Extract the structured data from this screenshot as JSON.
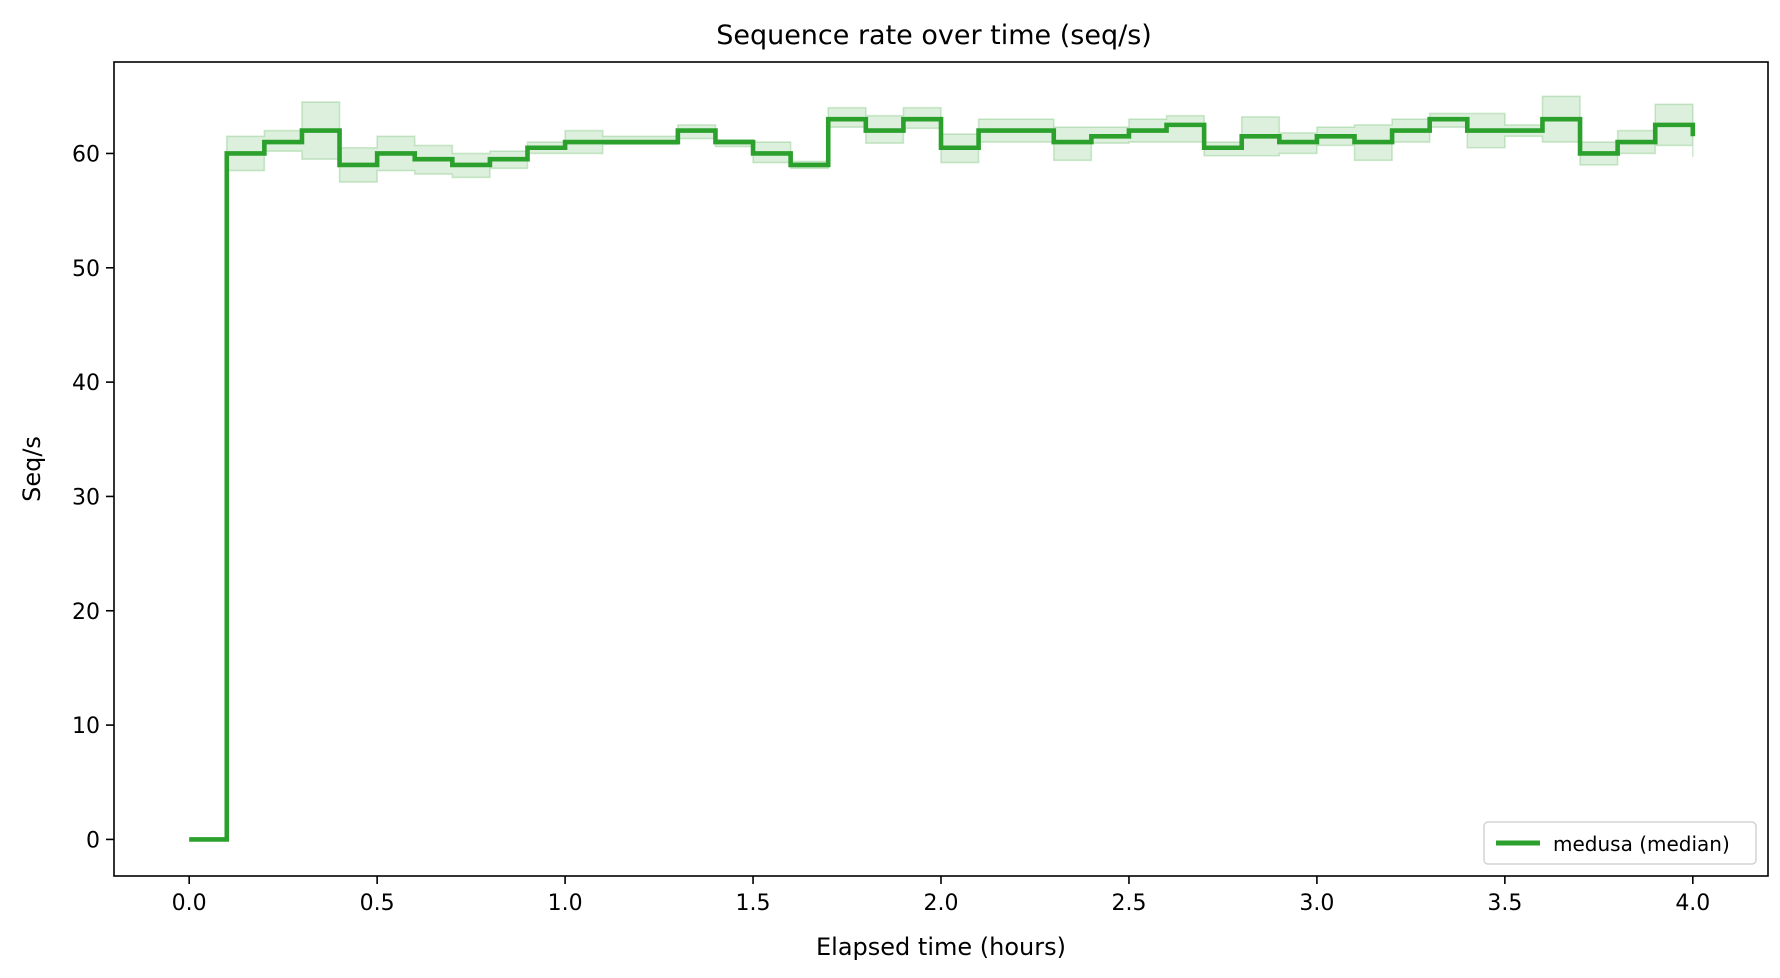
{
  "chart_data": {
    "type": "line",
    "title": "Sequence rate over time (seq/s)",
    "xlabel": "Elapsed time (hours)",
    "ylabel": "Seq/s",
    "xlim": [
      -0.2,
      4.2
    ],
    "ylim": [
      -3.2,
      68
    ],
    "xticks": [
      0.0,
      0.5,
      1.0,
      1.5,
      2.0,
      2.5,
      3.0,
      3.5,
      4.0
    ],
    "xtick_labels": [
      "0.0",
      "0.5",
      "1.0",
      "1.5",
      "2.0",
      "2.5",
      "3.0",
      "3.5",
      "4.0"
    ],
    "yticks": [
      0,
      10,
      20,
      30,
      40,
      50,
      60
    ],
    "ytick_labels": [
      "0",
      "10",
      "20",
      "30",
      "40",
      "50",
      "60"
    ],
    "grid": false,
    "legend_position": "lower-right",
    "step": "post",
    "series": [
      {
        "name": "medusa (median)",
        "color": "#2ca02c",
        "x": [
          0.0,
          0.1,
          0.2,
          0.3,
          0.4,
          0.5,
          0.6,
          0.7,
          0.8,
          0.9,
          1.0,
          1.1,
          1.2,
          1.3,
          1.4,
          1.5,
          1.6,
          1.7,
          1.8,
          1.9,
          2.0,
          2.1,
          2.2,
          2.3,
          2.4,
          2.5,
          2.6,
          2.7,
          2.8,
          2.9,
          3.0,
          3.1,
          3.2,
          3.3,
          3.4,
          3.5,
          3.6,
          3.7,
          3.8,
          3.9,
          4.0
        ],
        "y": [
          0,
          60,
          61,
          62,
          59,
          60,
          59.5,
          59,
          59.5,
          60.5,
          61,
          61,
          61,
          62,
          61,
          60,
          59,
          63,
          62,
          63,
          60.5,
          62,
          62,
          61,
          61.5,
          62,
          62.5,
          60.5,
          61.5,
          61,
          61.5,
          61,
          62,
          63,
          62,
          62,
          63,
          60,
          61,
          62.5,
          61.5
        ],
        "band_low": [
          0,
          58.5,
          60.2,
          59.5,
          57.5,
          58.5,
          58.2,
          57.9,
          58.7,
          60.0,
          60.0,
          60.8,
          60.8,
          61.3,
          60.6,
          59.2,
          58.7,
          62.3,
          60.9,
          62.2,
          59.2,
          61.0,
          61.0,
          59.4,
          60.9,
          61.0,
          61.0,
          59.8,
          59.8,
          60.0,
          60.7,
          59.4,
          61.0,
          62.3,
          60.5,
          61.5,
          61.0,
          59.0,
          60.0,
          60.7,
          59.7
        ],
        "band_high": [
          0,
          61.5,
          62.0,
          64.5,
          60.5,
          61.5,
          60.7,
          60.0,
          60.2,
          61.0,
          62.0,
          61.5,
          61.5,
          62.5,
          61.2,
          61.0,
          59.3,
          64.0,
          63.3,
          64.0,
          61.7,
          63.0,
          63.0,
          62.3,
          62.3,
          63.0,
          63.3,
          61.0,
          63.2,
          61.8,
          62.3,
          62.5,
          63.0,
          63.5,
          63.5,
          62.5,
          65.0,
          61.0,
          62.0,
          64.3,
          62.0
        ]
      }
    ]
  }
}
